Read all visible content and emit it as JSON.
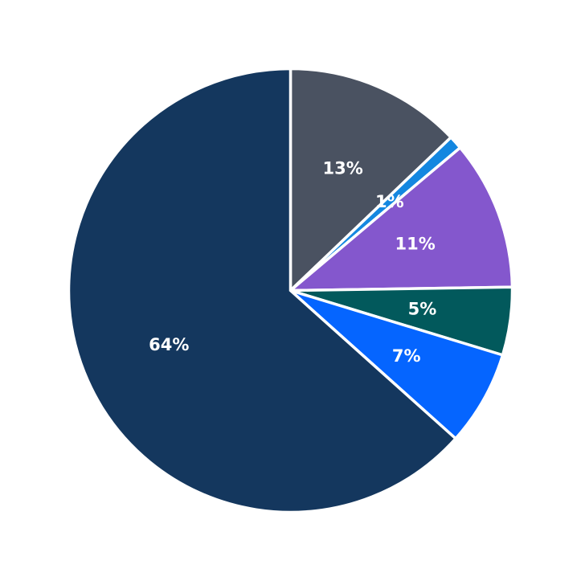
{
  "chart_data": {
    "type": "pie",
    "start_angle_deg": 90,
    "direction": "clockwise",
    "slices": [
      {
        "label": "13%",
        "value": 13,
        "color": "#4a5261"
      },
      {
        "label": "1%",
        "value": 1,
        "color": "#1487e0"
      },
      {
        "label": "11%",
        "value": 11,
        "color": "#8457cd"
      },
      {
        "label": "5%",
        "value": 5,
        "color": "#02595c"
      },
      {
        "label": "7%",
        "value": 7,
        "color": "#0565ff"
      },
      {
        "label": "64%",
        "value": 64,
        "color": "#14375e"
      }
    ]
  }
}
